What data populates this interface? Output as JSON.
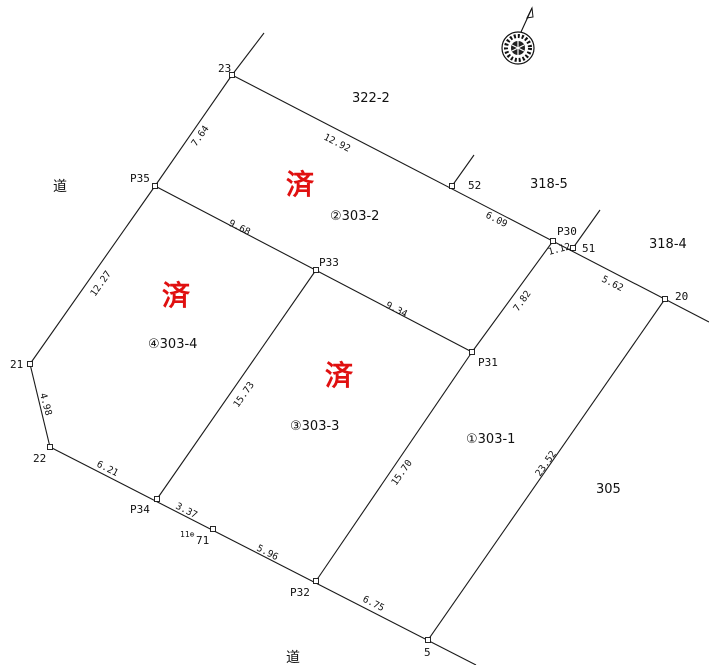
{
  "colors": {
    "done_mark": "#e01010",
    "line": "#1a1a1a"
  },
  "compass": {
    "icon": "north-arrow-compass-icon"
  },
  "road_labels": {
    "west": "道",
    "south": "道"
  },
  "stamps": {
    "lot2": "済",
    "lot3": "済",
    "lot4": "済"
  },
  "lots": {
    "lot1": "①303-1",
    "lot2": "②303-2",
    "lot3": "③303-3",
    "lot4": "④303-4"
  },
  "neighbors": {
    "n322_2": "322-2",
    "n318_5": "318-5",
    "n318_4": "318-4",
    "n305": "305"
  },
  "points": {
    "p23": "23",
    "p52": "52",
    "p30": "P30",
    "p51": "51",
    "p20": "20",
    "p35": "P35",
    "p33": "P33",
    "p31": "P31",
    "p21": "21",
    "p22": "22",
    "p34": "P34",
    "p71": "71",
    "p71_note": "11⊕",
    "p32": "P32",
    "p5": "5"
  },
  "dimensions": {
    "d23_p35": "7.64",
    "d23_52": "12.92",
    "d52_p30": "6.09",
    "d_p30_51": "1.12",
    "d51_20": "5.62",
    "d_p35_p33": "9.68",
    "d_p33_p31": "9.34",
    "d_p31_p30": "7.82",
    "d_p35_21": "12.27",
    "d21_22": "4.98",
    "d22_p34": "6.21",
    "d_p34_71": "3.37",
    "d71_p32": "5.96",
    "d_p32_5": "6.75",
    "d_p34_p33": "15.73",
    "d_p32_p31": "15.70",
    "d5_20": "23.52"
  }
}
